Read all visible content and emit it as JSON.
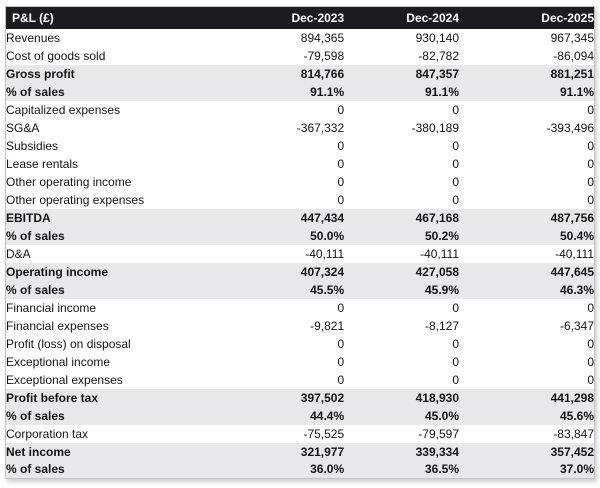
{
  "chart_data": {
    "type": "table",
    "title": "P&L (£)",
    "columns": [
      "Dec-2023",
      "Dec-2024",
      "Dec-2025"
    ],
    "rows": [
      {
        "label": "Revenues",
        "values": [
          "894,365",
          "930,140",
          "967,345"
        ],
        "style": "normal"
      },
      {
        "label": "Cost of goods sold",
        "values": [
          "-79,598",
          "-82,782",
          "-86,094"
        ],
        "style": "normal"
      },
      {
        "label": "Gross profit",
        "values": [
          "814,766",
          "847,357",
          "881,251"
        ],
        "style": "summary"
      },
      {
        "label": "% of sales",
        "values": [
          "91.1%",
          "91.1%",
          "91.1%"
        ],
        "style": "summary"
      },
      {
        "label": "Capitalized expenses",
        "values": [
          "0",
          "0",
          "0"
        ],
        "style": "normal"
      },
      {
        "label": "SG&A",
        "values": [
          "-367,332",
          "-380,189",
          "-393,496"
        ],
        "style": "normal"
      },
      {
        "label": "Subsidies",
        "values": [
          "0",
          "0",
          "0"
        ],
        "style": "normal"
      },
      {
        "label": "Lease rentals",
        "values": [
          "0",
          "0",
          "0"
        ],
        "style": "normal"
      },
      {
        "label": "Other operating income",
        "values": [
          "0",
          "0",
          "0"
        ],
        "style": "normal"
      },
      {
        "label": "Other operating expenses",
        "values": [
          "0",
          "0",
          "0"
        ],
        "style": "normal"
      },
      {
        "label": "EBITDA",
        "values": [
          "447,434",
          "467,168",
          "487,756"
        ],
        "style": "summary"
      },
      {
        "label": "% of sales",
        "values": [
          "50.0%",
          "50.2%",
          "50.4%"
        ],
        "style": "summary"
      },
      {
        "label": "D&A",
        "values": [
          "-40,111",
          "-40,111",
          "-40,111"
        ],
        "style": "normal"
      },
      {
        "label": "Operating income",
        "values": [
          "407,324",
          "427,058",
          "447,645"
        ],
        "style": "summary"
      },
      {
        "label": "% of sales",
        "values": [
          "45.5%",
          "45.9%",
          "46.3%"
        ],
        "style": "summary"
      },
      {
        "label": "Financial income",
        "values": [
          "0",
          "0",
          "0"
        ],
        "style": "normal"
      },
      {
        "label": "Financial expenses",
        "values": [
          "-9,821",
          "-8,127",
          "-6,347"
        ],
        "style": "normal"
      },
      {
        "label": "Profit (loss) on disposal",
        "values": [
          "0",
          "0",
          "0"
        ],
        "style": "normal"
      },
      {
        "label": "Exceptional income",
        "values": [
          "0",
          "0",
          "0"
        ],
        "style": "normal"
      },
      {
        "label": "Exceptional expenses",
        "values": [
          "0",
          "0",
          "0"
        ],
        "style": "normal"
      },
      {
        "label": "Profit before tax",
        "values": [
          "397,502",
          "418,930",
          "441,298"
        ],
        "style": "summary"
      },
      {
        "label": "% of sales",
        "values": [
          "44.4%",
          "45.0%",
          "45.6%"
        ],
        "style": "summary"
      },
      {
        "label": "Corporation tax",
        "values": [
          "-75,525",
          "-79,597",
          "-83,847"
        ],
        "style": "normal"
      },
      {
        "label": "Net income",
        "values": [
          "321,977",
          "339,334",
          "357,452"
        ],
        "style": "summary"
      },
      {
        "label": "% of sales",
        "values": [
          "36.0%",
          "36.5%",
          "37.0%"
        ],
        "style": "summary"
      }
    ],
    "layout": {
      "header_bg": "#1c1c20",
      "header_text": "#ffffff",
      "summary_row_bg": "#e8e8eb",
      "normal_row_bg": "#ffffff",
      "border_color": "#c2c2c6"
    }
  }
}
